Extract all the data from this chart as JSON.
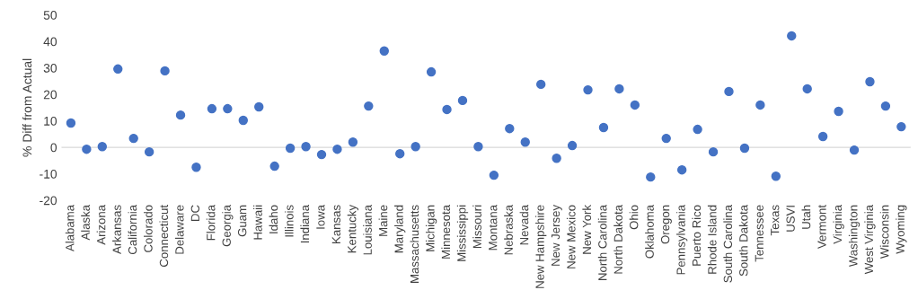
{
  "chart_data": {
    "type": "scatter",
    "ylabel": "% Diff from Actual",
    "categories": [
      "Alabama",
      "Alaska",
      "Arizona",
      "Arkansas",
      "California",
      "Colorado",
      "Connecticut",
      "Delaware",
      "DC",
      "Florida",
      "Georgia",
      "Guam",
      "Hawaii",
      "Idaho",
      "Illinois",
      "Indiana",
      "Iowa",
      "Kansas",
      "Kentucky",
      "Louisiana",
      "Maine",
      "Maryland",
      "Massachusetts",
      "Michigan",
      "Minnesota",
      "Mississippi",
      "Missouri",
      "Montana",
      "Nebraska",
      "Nevada",
      "New Hampshire",
      "New Jersey",
      "New Mexico",
      "New York",
      "North Carolina",
      "North Dakota",
      "Ohio",
      "Oklahoma",
      "Oregon",
      "Pennsylvania",
      "Puerto Rico",
      "Rhode Island",
      "South Carolina",
      "South Dakota",
      "Tennessee",
      "Texas",
      "USVI",
      "Utah",
      "Vermont",
      "Virginia",
      "Washington",
      "West Virginia",
      "Wisconsin",
      "Wyoming"
    ],
    "values": [
      9.2,
      -0.7,
      0.3,
      29.6,
      3.4,
      -1.7,
      28.9,
      12.2,
      -7.5,
      14.6,
      14.6,
      10.2,
      15.3,
      -7.1,
      -0.3,
      0.3,
      -2.7,
      -0.7,
      2.0,
      15.6,
      36.4,
      -2.4,
      0.3,
      28.5,
      14.3,
      17.7,
      0.3,
      -10.5,
      7.1,
      2.0,
      23.8,
      -4.1,
      0.7,
      21.7,
      7.5,
      22.1,
      16.0,
      -11.2,
      3.4,
      -8.5,
      6.8,
      -1.7,
      21.1,
      -0.3,
      16.0,
      -10.9,
      42.1,
      22.1,
      4.1,
      13.6,
      -1.0,
      24.8,
      15.6,
      7.8
    ],
    "color": "#4472c4",
    "marker": "circle",
    "ylim": [
      -20,
      50
    ],
    "yticks": [
      -20,
      -10,
      0,
      10,
      20,
      30,
      40,
      50
    ],
    "ref_lines": [
      {
        "axis": "y",
        "value": 0,
        "color": "#d9d9d9"
      }
    ],
    "grid": false,
    "legend": false
  }
}
